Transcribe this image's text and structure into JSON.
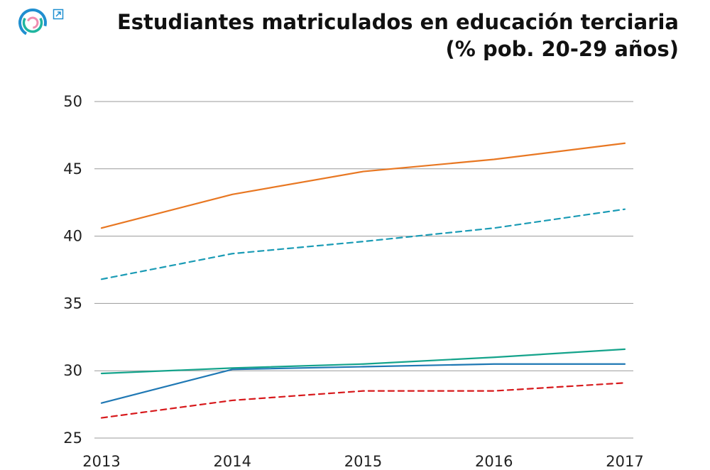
{
  "header": {
    "title_line1": "Estudiantes matriculados en educación terciaria",
    "title_line2": "(% pob. 20-29 años)"
  },
  "icons": {
    "logo": "brand-logo-icon",
    "external": "external-link-icon"
  },
  "colors": {
    "grid": "#9a9a9a",
    "logo_blue": "#1f8fd0",
    "logo_teal": "#1fb5a0",
    "logo_pink": "#f08cb0"
  },
  "chart_data": {
    "type": "line",
    "title": "Estudiantes matriculados en educación terciaria (% pob. 20-29 años)",
    "xlabel": "",
    "ylabel": "",
    "x": [
      2013,
      2014,
      2015,
      2016,
      2017
    ],
    "x_tick_labels": [
      "2013",
      "2014",
      "2015",
      "2016",
      "2017"
    ],
    "y_ticks": [
      25,
      30,
      35,
      40,
      45,
      50
    ],
    "y_tick_labels": [
      "25",
      "30",
      "35",
      "40",
      "45",
      "50"
    ],
    "ylim": [
      25,
      50
    ],
    "grid": true,
    "legend": "none",
    "series": [
      {
        "values": [
          40.6,
          43.1,
          44.8,
          45.7,
          46.9
        ],
        "color": "#e87722",
        "style": "solid"
      },
      {
        "values": [
          36.8,
          38.7,
          39.6,
          40.6,
          42.0
        ],
        "color": "#1a9bb5",
        "style": "dashed"
      },
      {
        "values": [
          29.8,
          30.2,
          30.5,
          31.0,
          31.6
        ],
        "color": "#14a38b",
        "style": "solid"
      },
      {
        "values": [
          27.6,
          30.1,
          30.3,
          30.5,
          30.5
        ],
        "color": "#1f78b4",
        "style": "solid"
      },
      {
        "values": [
          26.5,
          27.8,
          28.5,
          28.5,
          29.1
        ],
        "color": "#d7191c",
        "style": "dashed"
      }
    ]
  }
}
